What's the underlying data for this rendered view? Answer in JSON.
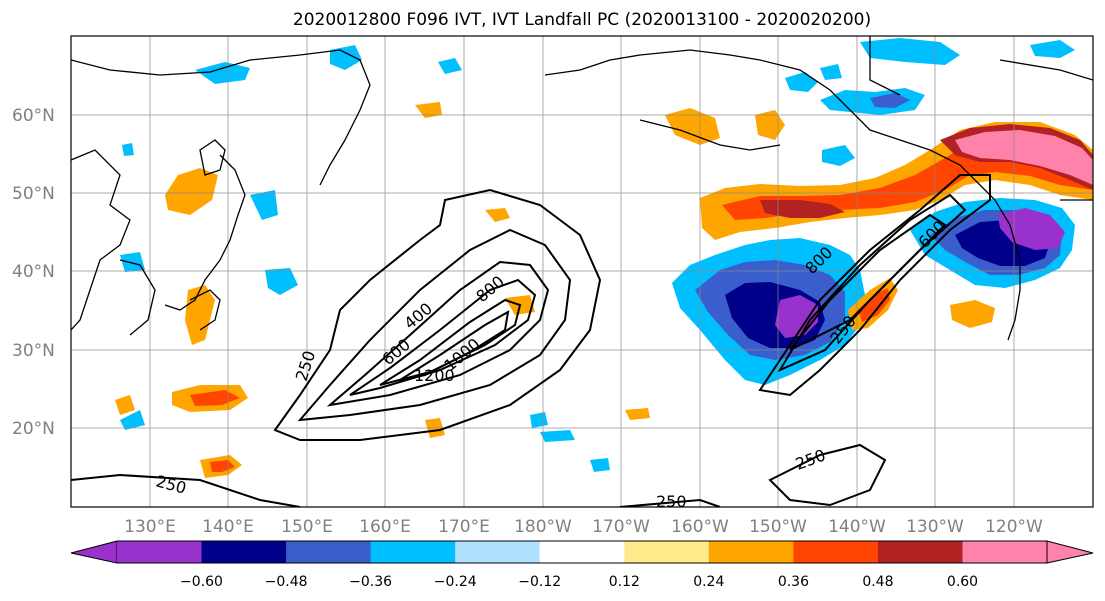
{
  "title": "2020012800 F096 IVT, IVT Landfall PC (2020013100 - 2020020200)",
  "map": {
    "lat_labels": [
      "60°N",
      "50°N",
      "40°N",
      "30°N",
      "20°N"
    ],
    "lon_labels": [
      "130°E",
      "140°E",
      "150°E",
      "160°E",
      "170°E",
      "180°W",
      "170°W",
      "160°W",
      "150°W",
      "140°W",
      "130°W",
      "120°W"
    ],
    "contour_labels": [
      "250",
      "400",
      "600",
      "800",
      "1200",
      "1000",
      "250",
      "250",
      "250",
      "600",
      "800",
      "250"
    ],
    "gridlines": true
  },
  "colorbar": {
    "ticks": [
      "−0.60",
      "−0.48",
      "−0.36",
      "−0.24",
      "−0.12",
      "0.12",
      "0.24",
      "0.36",
      "0.48",
      "0.60"
    ],
    "colors": [
      "#9932cc",
      "#00008b",
      "#3a5fcd",
      "#00bfff",
      "#b0e2ff",
      "#ffffff",
      "#ffeb8b",
      "#ffa500",
      "#ff4500",
      "#b22222",
      "#ff82ab"
    ],
    "extend": "both"
  },
  "colors": {
    "purple": "#9932cc",
    "navy": "#00008b",
    "royal": "#3a5fcd",
    "sky": "#00bfff",
    "pale_blue": "#b0e2ff",
    "pale_yellow": "#ffeb8b",
    "orange": "#ffa500",
    "red_orange": "#ff4500",
    "firebrick": "#b22222",
    "pink": "#ff82ab"
  }
}
